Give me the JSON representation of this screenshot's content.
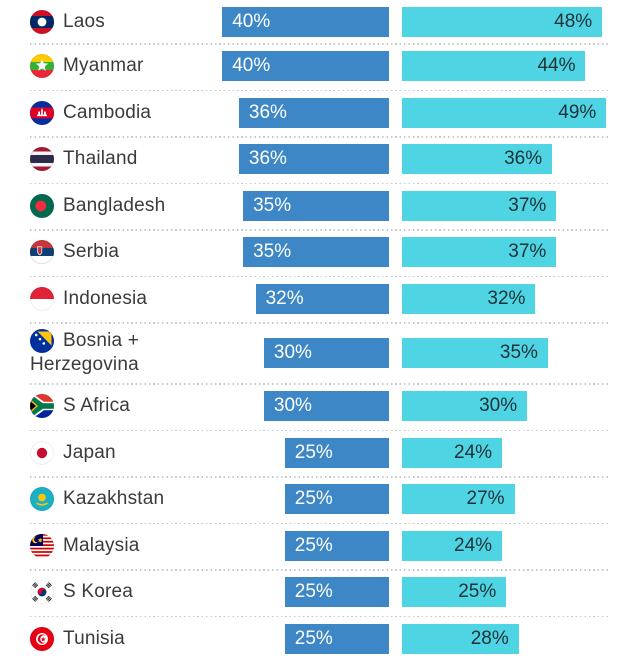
{
  "chart_data": {
    "type": "bar",
    "orientation": "horizontal",
    "title": "",
    "categories": [
      "Laos",
      "Myanmar",
      "Cambodia",
      "Thailand",
      "Bangladesh",
      "Serbia",
      "Indonesia",
      "Bosnia + Herzegovina",
      "S Africa",
      "Japan",
      "Kazakhstan",
      "Malaysia",
      "S Korea",
      "Tunisia"
    ],
    "flags": [
      "laos",
      "myanmar",
      "cambodia",
      "thailand",
      "bangladesh",
      "serbia",
      "indonesia",
      "bosnia",
      "s-africa",
      "japan",
      "kazakhstan",
      "malaysia",
      "s-korea",
      "tunisia"
    ],
    "series": [
      {
        "name": "left-blue-bars",
        "color": "#3D87C6",
        "label_color": "#FFFFFF",
        "values": [
          40,
          40,
          36,
          36,
          35,
          35,
          32,
          30,
          30,
          25,
          25,
          25,
          25,
          25
        ],
        "labels": [
          "40%",
          "40%",
          "36%",
          "36%",
          "35%",
          "35%",
          "32%",
          "30%",
          "30%",
          "25%",
          "25%",
          "25%",
          "25%",
          "25%"
        ]
      },
      {
        "name": "right-cyan-bars",
        "color": "#4ED4E2",
        "label_color": "#1E3138",
        "values": [
          48,
          44,
          49,
          36,
          37,
          37,
          32,
          35,
          30,
          24,
          27,
          24,
          25,
          28
        ],
        "labels": [
          "48%",
          "44%",
          "49%",
          "36%",
          "37%",
          "37%",
          "32%",
          "35%",
          "30%",
          "24%",
          "27%",
          "24%",
          "25%",
          "28%"
        ]
      }
    ],
    "value_suffix": "%",
    "xlim": [
      0,
      50
    ],
    "grid": false,
    "legend": null
  }
}
